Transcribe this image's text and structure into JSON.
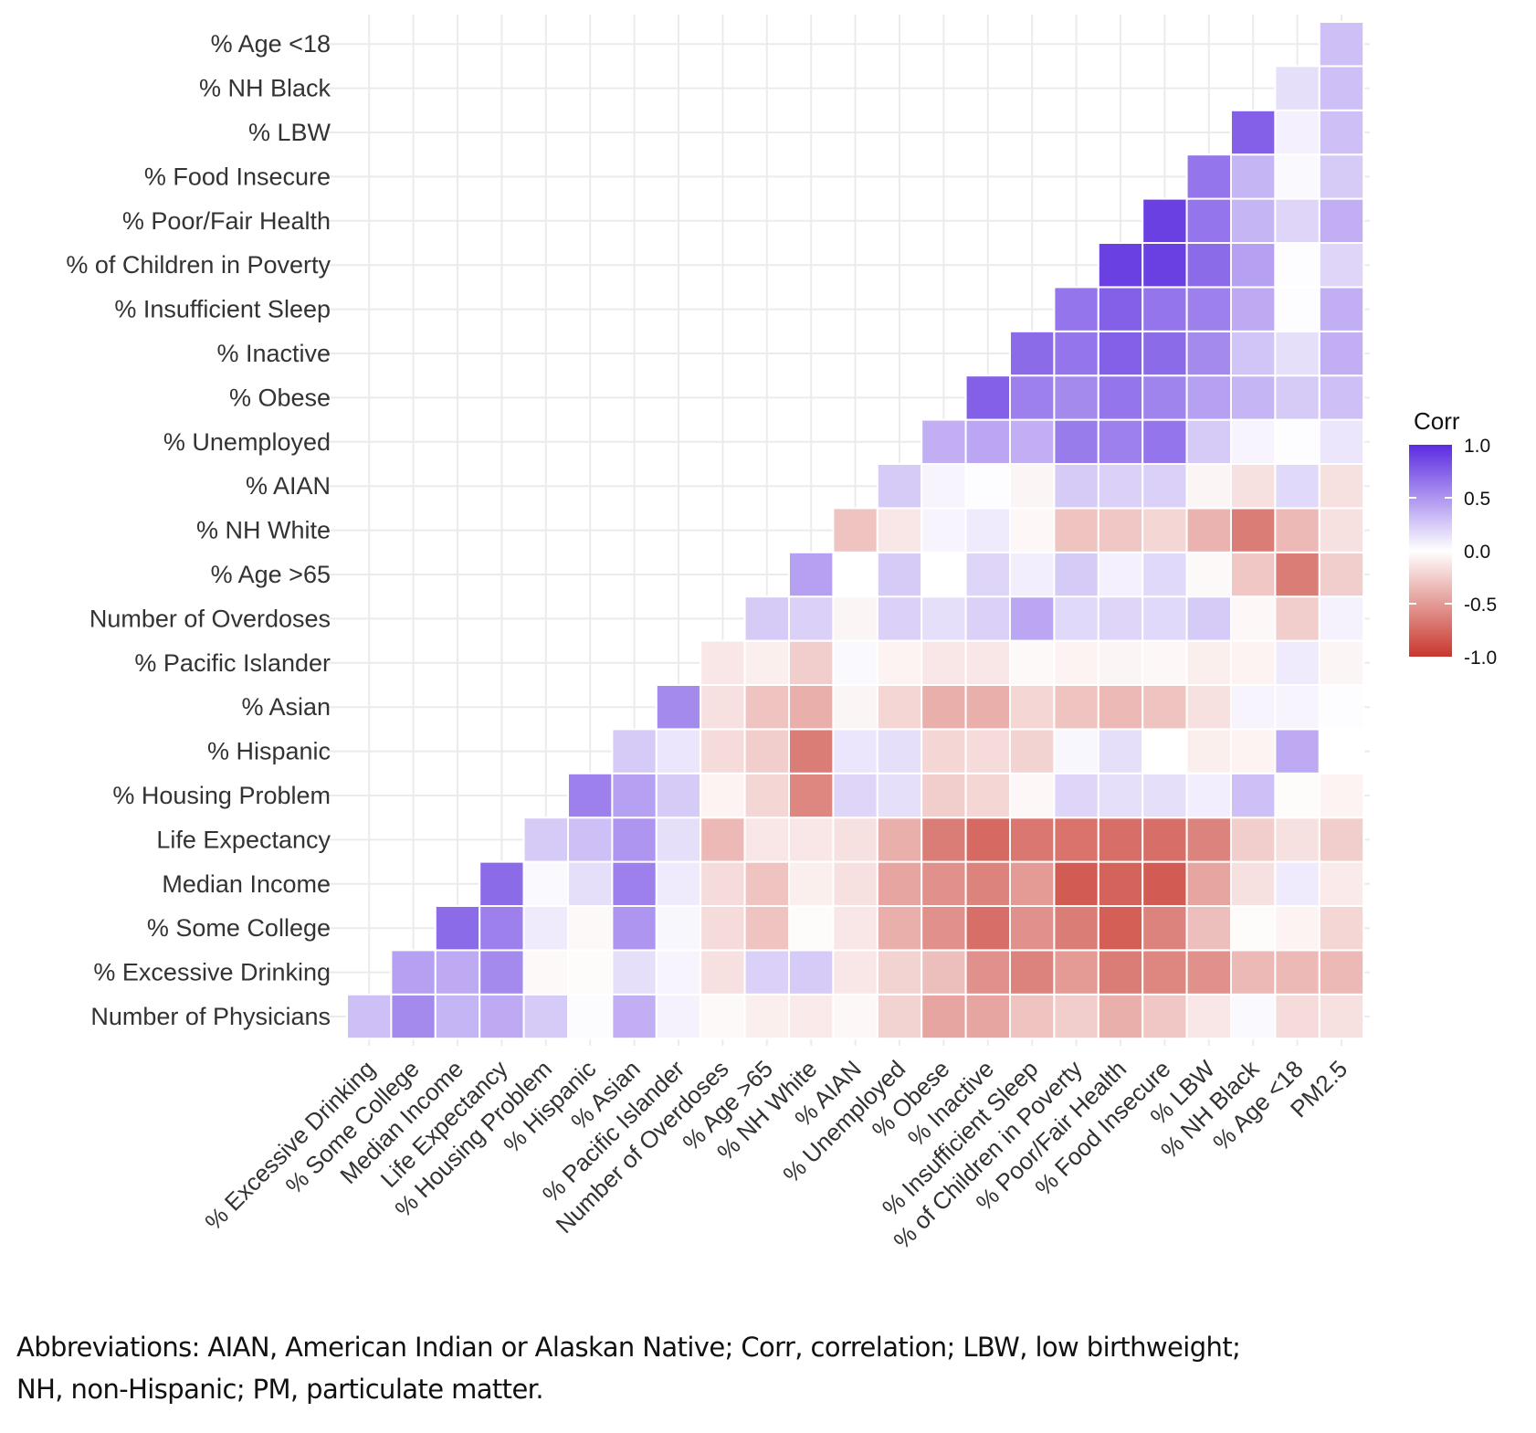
{
  "chart_data": {
    "type": "heatmap",
    "title": "",
    "xlabel": "",
    "ylabel": "",
    "x_labels": [
      "% Excessive Drinking",
      "% Some College",
      "Median Income",
      "Life Expectancy",
      "% Housing Problem",
      "% Hispanic",
      "% Asian",
      "% Pacific Islander",
      "Number of Overdoses",
      "% Age >65",
      "% NH White",
      "% AIAN",
      "% Unemployed",
      "% Obese",
      "% Inactive",
      "% Insufficient Sleep",
      "% of Children in Poverty",
      "% Poor/Fair Health",
      "% Food Insecure",
      "% LBW",
      "% NH Black",
      "% Age <18",
      "PM2.5"
    ],
    "y_labels_bottom_to_top": [
      "Number of Physicians",
      "% Excessive Drinking",
      "% Some College",
      "Median Income",
      "Life Expectancy",
      "% Housing Problem",
      "% Hispanic",
      "% Asian",
      "% Pacific Islander",
      "Number of Overdoses",
      "% Age >65",
      "% NH White",
      "% AIAN",
      "% Unemployed",
      "% Obese",
      "% Inactive",
      "% Insufficient Sleep",
      "% of Children in Poverty",
      "% Poor/Fair Health",
      "% Food Insecure",
      "% LBW",
      "% NH Black",
      "% Age <18"
    ],
    "values_note": "Row i (bottom-to-top) lists correlations for x columns i..22",
    "values": [
      [
        0.3,
        0.55,
        0.35,
        0.4,
        0.25,
        0.02,
        0.38,
        0.06,
        -0.03,
        -0.08,
        -0.1,
        -0.04,
        -0.22,
        -0.45,
        -0.45,
        -0.3,
        -0.25,
        -0.4,
        -0.28,
        -0.12,
        0.03,
        -0.18,
        -0.15
      ],
      [
        0.45,
        0.4,
        0.55,
        -0.03,
        -0.02,
        0.15,
        0.05,
        -0.15,
        0.22,
        0.25,
        -0.12,
        -0.22,
        -0.32,
        -0.55,
        -0.62,
        -0.5,
        -0.65,
        -0.6,
        -0.55,
        -0.35,
        -0.35,
        -0.35
      ],
      [
        0.7,
        0.6,
        0.1,
        -0.03,
        0.5,
        0.04,
        -0.18,
        -0.3,
        -0.02,
        -0.12,
        -0.4,
        -0.55,
        -0.72,
        -0.55,
        -0.65,
        -0.8,
        -0.62,
        -0.32,
        -0.02,
        -0.06,
        -0.2
      ],
      [
        0.7,
        0.03,
        0.15,
        0.6,
        0.1,
        -0.18,
        -0.3,
        -0.08,
        -0.15,
        -0.45,
        -0.55,
        -0.62,
        -0.5,
        -0.82,
        -0.78,
        -0.82,
        -0.45,
        -0.15,
        0.1,
        -0.1
      ],
      [
        0.25,
        0.3,
        0.5,
        0.15,
        -0.35,
        -0.12,
        -0.12,
        -0.15,
        -0.4,
        -0.65,
        -0.75,
        -0.68,
        -0.7,
        -0.72,
        -0.72,
        -0.62,
        -0.25,
        -0.15,
        -0.25
      ],
      [
        0.6,
        0.45,
        0.25,
        -0.06,
        -0.2,
        -0.6,
        0.2,
        0.15,
        -0.25,
        -0.2,
        -0.04,
        0.2,
        0.15,
        0.15,
        0.08,
        0.3,
        -0.02,
        -0.06
      ],
      [
        0.25,
        0.12,
        -0.18,
        -0.25,
        -0.65,
        0.12,
        0.15,
        -0.2,
        -0.18,
        -0.22,
        0.04,
        0.15,
        0.0,
        -0.08,
        -0.06,
        0.4,
        0.0
      ],
      [
        0.55,
        -0.15,
        -0.3,
        -0.4,
        -0.05,
        -0.2,
        -0.4,
        -0.4,
        -0.2,
        -0.3,
        -0.35,
        -0.3,
        -0.15,
        0.05,
        0.05,
        0.01
      ],
      [
        -0.12,
        -0.08,
        -0.25,
        0.03,
        -0.06,
        -0.12,
        -0.12,
        -0.03,
        -0.06,
        -0.05,
        -0.04,
        -0.08,
        -0.06,
        0.1,
        -0.05
      ],
      [
        0.25,
        0.22,
        -0.05,
        0.22,
        0.15,
        0.22,
        0.42,
        0.18,
        0.2,
        0.18,
        0.25,
        -0.04,
        -0.25,
        0.06
      ],
      [
        0.45,
        0.0,
        0.25,
        0.0,
        0.2,
        0.08,
        0.25,
        0.07,
        0.18,
        -0.03,
        -0.28,
        -0.65,
        -0.25
      ],
      [
        -0.3,
        -0.12,
        0.05,
        0.1,
        -0.04,
        -0.3,
        -0.28,
        -0.2,
        -0.38,
        -0.65,
        -0.35,
        -0.15
      ],
      [
        0.25,
        0.05,
        0.01,
        -0.05,
        0.25,
        0.22,
        0.22,
        -0.05,
        -0.15,
        0.18,
        -0.15
      ],
      [
        0.38,
        0.42,
        0.38,
        0.62,
        0.6,
        0.65,
        0.25,
        0.05,
        0.01,
        0.12
      ],
      [
        0.75,
        0.6,
        0.55,
        0.65,
        0.58,
        0.45,
        0.35,
        0.25,
        0.3
      ],
      [
        0.7,
        0.65,
        0.75,
        0.7,
        0.55,
        0.28,
        0.15,
        0.38
      ],
      [
        0.65,
        0.75,
        0.65,
        0.6,
        0.4,
        0.01,
        0.38
      ],
      [
        0.9,
        0.9,
        0.7,
        0.45,
        0.01,
        0.2
      ],
      [
        0.9,
        0.65,
        0.35,
        0.2,
        0.38
      ],
      [
        0.65,
        0.35,
        0.03,
        0.25
      ],
      [
        0.75,
        0.07,
        0.3
      ],
      [
        0.15,
        0.3
      ],
      [
        0.3
      ]
    ],
    "color_scale": {
      "low": "#C8372D",
      "mid": "#FFFFFF",
      "high": "#5B2BE0",
      "domain": [
        -1.0,
        0.0,
        1.0
      ]
    },
    "legend": {
      "title": "Corr",
      "ticks": [
        "1.0",
        "0.5",
        "0.0",
        "-0.5",
        "-1.0"
      ],
      "tick_values": [
        1.0,
        0.5,
        0.0,
        -0.5,
        -1.0
      ],
      "placement": "right"
    },
    "grid": true
  },
  "footnote": {
    "line1": "Abbreviations: AIAN, American Indian or Alaskan Native; Corr, correlation; LBW, low birthweight;",
    "line2": "NH, non-Hispanic; PM, particulate matter."
  }
}
